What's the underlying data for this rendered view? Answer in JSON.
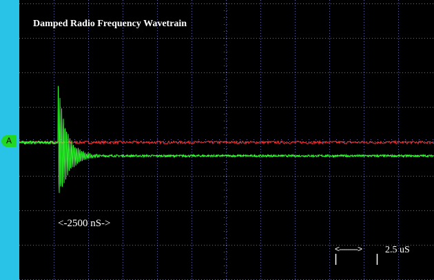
{
  "chart_data": {
    "type": "line",
    "title": "Damped Radio Frequency Wavetrain",
    "annotation": "<-2500 nS->",
    "scale_indicator": {
      "arrow_text": "<--------->",
      "label": "2.5 uS"
    },
    "channel_label": "A",
    "time_per_division_us": 2.5,
    "grid": true,
    "divisions": {
      "x": 12,
      "y": 8
    },
    "series": [
      {
        "color": "#ff3030",
        "baseline_div": -0.03,
        "noise_div": 0.04
      },
      {
        "color": "#33ff33",
        "event": {
          "start_div": 1.12,
          "peak_amplitude_div": 1.75,
          "peak_negative_div": -1.8,
          "duration_ns": 2500,
          "decay_time_div": 0.28
        },
        "offset_after_div": -0.42,
        "noise_div": 0.03
      }
    ],
    "colors": {
      "background": "#000000",
      "grid": "#6a6aa8",
      "text": "#ffffff",
      "rail": "#29c3e8"
    }
  }
}
